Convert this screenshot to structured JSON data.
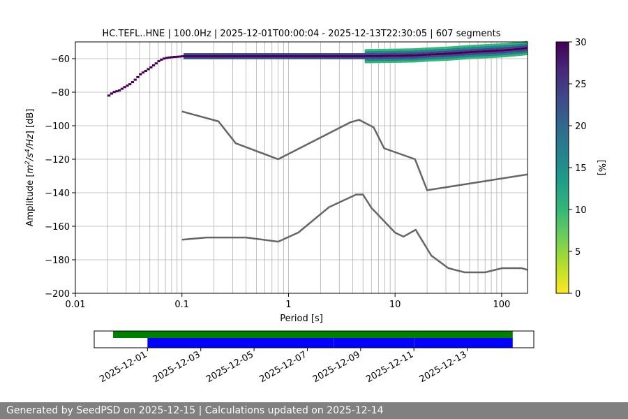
{
  "chart_data": [
    {
      "type": "heatmap",
      "title": "HC.TEFL..HNE | 100.0Hz | 2025-12-01T00:00:04 - 2025-12-13T22:30:05 | 607 segments",
      "xlabel": "Period [s]",
      "ylabel_parts": [
        "Amplitude [",
        "m",
        "2",
        "/",
        "s",
        "4",
        "/",
        "Hz",
        "] [dB]"
      ],
      "xscale": "log",
      "xlim": [
        0.01,
        175
      ],
      "ylim": [
        -200,
        -50
      ],
      "x_ticks": [
        {
          "value": 0.01,
          "label": "0.01"
        },
        {
          "value": 0.1,
          "label": "0.1"
        },
        {
          "value": 1,
          "label": "1"
        },
        {
          "value": 10,
          "label": "10"
        },
        {
          "value": 100,
          "label": "100"
        }
      ],
      "y_ticks": [
        {
          "value": -60,
          "label": "−60"
        },
        {
          "value": -80,
          "label": "−80"
        },
        {
          "value": -100,
          "label": "−100"
        },
        {
          "value": -120,
          "label": "−120"
        },
        {
          "value": -140,
          "label": "−140"
        },
        {
          "value": -160,
          "label": "−160"
        },
        {
          "value": -180,
          "label": "−180"
        },
        {
          "value": -200,
          "label": "−200"
        }
      ],
      "grid": true,
      "psd_mode_curve": [
        [
          0.02,
          -82
        ],
        [
          0.022,
          -80
        ],
        [
          0.025,
          -79
        ],
        [
          0.028,
          -77
        ],
        [
          0.032,
          -75
        ],
        [
          0.036,
          -72
        ],
        [
          0.04,
          -69
        ],
        [
          0.045,
          -67
        ],
        [
          0.05,
          -65
        ],
        [
          0.055,
          -63
        ],
        [
          0.06,
          -61
        ],
        [
          0.065,
          -60
        ],
        [
          0.07,
          -59.5
        ],
        [
          0.08,
          -59
        ],
        [
          0.09,
          -58.8
        ],
        [
          0.1,
          -58.5
        ],
        [
          0.2,
          -58.5
        ],
        [
          0.5,
          -58.5
        ],
        [
          1,
          -58.5
        ],
        [
          2,
          -58.5
        ],
        [
          5,
          -58.5
        ],
        [
          10,
          -58.2
        ],
        [
          15,
          -58
        ],
        [
          20,
          -57.5
        ],
        [
          30,
          -57
        ],
        [
          50,
          -56
        ],
        [
          70,
          -55.5
        ],
        [
          100,
          -55
        ],
        [
          150,
          -54
        ],
        [
          175,
          -53.5
        ]
      ],
      "nhnm": [
        [
          0.1,
          -91.5
        ],
        [
          0.22,
          -97.4
        ],
        [
          0.32,
          -110.5
        ],
        [
          0.8,
          -120
        ],
        [
          3.8,
          -98
        ],
        [
          4.6,
          -96.5
        ],
        [
          6.3,
          -101
        ],
        [
          7.9,
          -113.5
        ],
        [
          15.4,
          -120
        ],
        [
          20,
          -138.5
        ],
        [
          354.8,
          -126
        ]
      ],
      "nlnm": [
        [
          0.1,
          -168
        ],
        [
          0.17,
          -166.7
        ],
        [
          0.4,
          -166.7
        ],
        [
          0.8,
          -169.2
        ],
        [
          1.24,
          -163.7
        ],
        [
          2.4,
          -148.6
        ],
        [
          4.3,
          -141.1
        ],
        [
          5,
          -141.1
        ],
        [
          6,
          -149
        ],
        [
          10,
          -163.8
        ],
        [
          12,
          -166.2
        ],
        [
          15.6,
          -162.1
        ],
        [
          21.9,
          -177.5
        ],
        [
          31.6,
          -185
        ],
        [
          45,
          -187.5
        ],
        [
          70,
          -187.5
        ],
        [
          101,
          -185
        ],
        [
          154,
          -185
        ],
        [
          175,
          -186
        ]
      ],
      "colorbar": {
        "label": "[%]",
        "min": 0,
        "max": 30,
        "ticks": [
          "0",
          "5",
          "10",
          "15",
          "20",
          "25",
          "30"
        ],
        "colors": [
          "#fde725",
          "#b5de2b",
          "#6ece58",
          "#35b779",
          "#1f9e89",
          "#26828e",
          "#31688e",
          "#3e4989",
          "#482878",
          "#440154"
        ]
      }
    },
    {
      "type": "bar",
      "description_free": true,
      "x_ticks": [
        "2025-12-01",
        "2025-12-03",
        "2025-12-05",
        "2025-12-07",
        "2025-12-09",
        "2025-12-11",
        "2025-12-13"
      ],
      "xlim": [
        "2025-11-29T00:00",
        "2025-12-15T12:00"
      ],
      "series": [
        {
          "color": "#008000",
          "intervals": [
            [
              "2025-11-29T17:00",
              "2025-12-14T17:00"
            ]
          ]
        },
        {
          "color": "#0000ff",
          "intervals": [
            [
              "2025-12-01T00:00:04",
              "2025-12-08T00:00"
            ],
            [
              "2025-12-08T00:05",
              "2025-12-11T00:00"
            ],
            [
              "2025-12-11T00:05",
              "2025-12-14T17:00"
            ]
          ]
        }
      ]
    }
  ],
  "footer": {
    "text": "Generated by SeedPSD on 2025-12-15 | Calculations updated on 2025-12-14"
  }
}
